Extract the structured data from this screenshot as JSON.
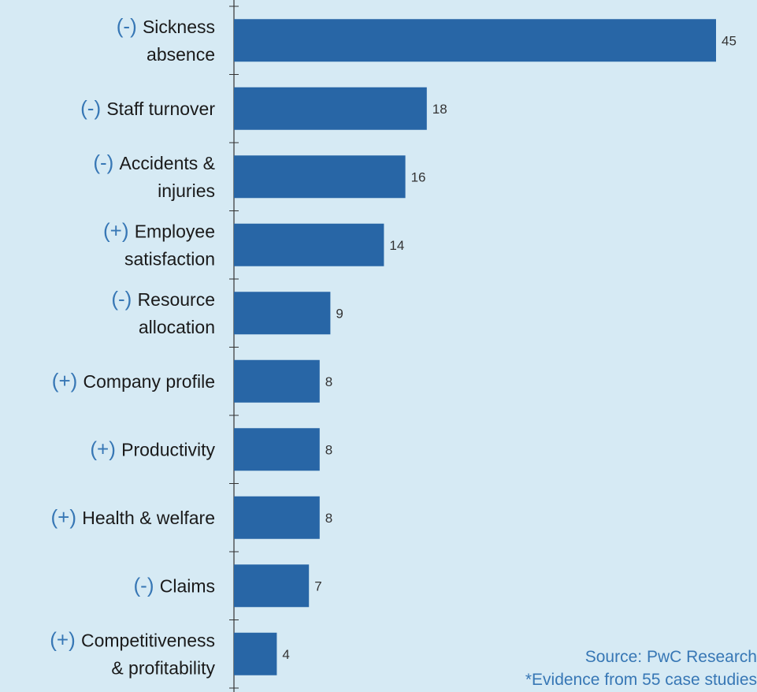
{
  "chart_data": {
    "type": "bar",
    "orientation": "horizontal",
    "categories": [
      {
        "sign": "(-)",
        "label": [
          "Sickness",
          "absence"
        ]
      },
      {
        "sign": "(-)",
        "label": [
          "Staff turnover"
        ]
      },
      {
        "sign": "(-)",
        "label": [
          "Accidents &",
          "injuries"
        ]
      },
      {
        "sign": "(+)",
        "label": [
          "Employee",
          "satisfaction"
        ]
      },
      {
        "sign": "(-)",
        "label": [
          "Resource",
          "allocation"
        ]
      },
      {
        "sign": "(+)",
        "label": [
          "Company profile"
        ]
      },
      {
        "sign": "(+)",
        "label": [
          "Productivity"
        ]
      },
      {
        "sign": "(+)",
        "label": [
          "Health & welfare"
        ]
      },
      {
        "sign": "(-)",
        "label": [
          "Claims"
        ]
      },
      {
        "sign": "(+)",
        "label": [
          "Competitiveness",
          "& profitability"
        ]
      }
    ],
    "values": [
      45,
      18,
      16,
      14,
      9,
      8,
      8,
      8,
      7,
      4
    ],
    "xlim": [
      0,
      45
    ],
    "colors": {
      "bar": "#2866a6",
      "sign": "#3777b5",
      "label": "#1a1a1a",
      "axis": "#333333",
      "background": "#d6eaf4"
    }
  },
  "footer": {
    "source": "Source:  PwC Research",
    "note": "*Evidence from 55 case studies"
  }
}
